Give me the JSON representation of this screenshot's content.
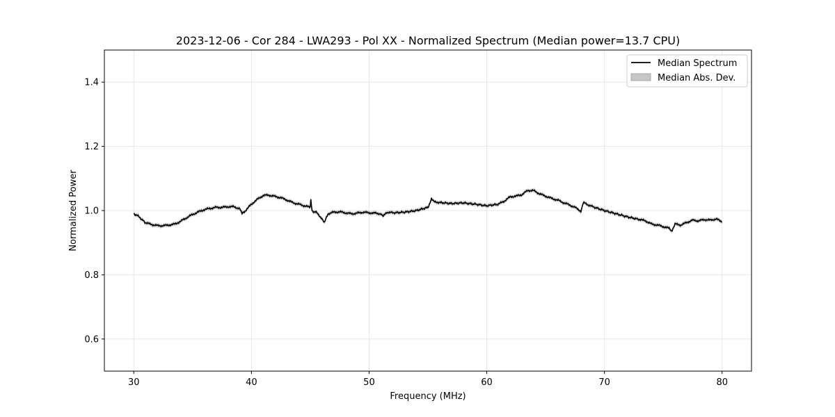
{
  "chart_data": {
    "type": "line",
    "title": "2023-12-06 - Cor 284 - LWA293 - Pol XX - Normalized Spectrum (Median power=13.7 CPU)",
    "xlabel": "Frequency (MHz)",
    "ylabel": "Normalized Power",
    "xlim": [
      27.5,
      82.5
    ],
    "ylim": [
      0.5,
      1.5
    ],
    "xticks": [
      30,
      40,
      50,
      60,
      70,
      80
    ],
    "yticks": [
      0.6,
      0.8,
      1.0,
      1.2,
      1.4
    ],
    "grid": true,
    "legend_position": "top-right",
    "series": [
      {
        "name": "Median Spectrum",
        "kind": "line",
        "color": "#000000",
        "x": [
          30,
          30.3,
          30.6,
          31,
          31.5,
          32,
          32.5,
          33,
          33.5,
          34,
          34.5,
          35,
          35.5,
          36,
          36.5,
          37,
          37.5,
          38,
          38.5,
          39,
          39.2,
          39.5,
          40,
          40.5,
          41,
          41.5,
          42,
          42.5,
          43,
          43.5,
          44,
          44.5,
          45,
          45.05,
          45.15,
          45.5,
          46,
          46.2,
          46.5,
          47,
          47.5,
          48,
          48.5,
          49,
          49.5,
          50,
          50.5,
          51,
          51.2,
          51.5,
          52,
          53,
          54,
          55,
          55.3,
          55.5,
          56,
          57,
          58,
          59,
          60,
          61,
          61.5,
          62,
          62.5,
          63,
          63.5,
          64,
          64.5,
          65,
          65.5,
          66,
          66.5,
          67,
          67.5,
          68,
          68.2,
          68.5,
          69,
          70,
          71,
          72,
          73,
          73.5,
          74,
          74.5,
          75,
          75.5,
          75.7,
          76,
          76.5,
          77,
          77.5,
          78,
          78.5,
          79,
          79.5,
          80
        ],
        "y": [
          0.99,
          0.985,
          0.975,
          0.962,
          0.957,
          0.953,
          0.953,
          0.955,
          0.958,
          0.967,
          0.978,
          0.988,
          0.996,
          1.003,
          1.007,
          1.01,
          1.01,
          1.012,
          1.012,
          1.006,
          0.99,
          1.0,
          1.02,
          1.035,
          1.047,
          1.048,
          1.044,
          1.04,
          1.033,
          1.025,
          1.02,
          1.015,
          1.01,
          1.035,
          0.998,
          0.995,
          0.975,
          0.962,
          0.99,
          0.995,
          0.996,
          0.993,
          0.99,
          0.992,
          0.995,
          0.993,
          0.992,
          0.99,
          0.982,
          0.995,
          0.993,
          0.995,
          1.0,
          1.01,
          1.035,
          1.028,
          1.025,
          1.022,
          1.024,
          1.02,
          1.015,
          1.02,
          1.03,
          1.043,
          1.045,
          1.05,
          1.063,
          1.062,
          1.052,
          1.045,
          1.038,
          1.033,
          1.025,
          1.018,
          1.01,
          0.998,
          1.025,
          1.02,
          1.012,
          1.0,
          0.99,
          0.98,
          0.972,
          0.968,
          0.958,
          0.955,
          0.95,
          0.945,
          0.935,
          0.958,
          0.955,
          0.963,
          0.97,
          0.968,
          0.972,
          0.97,
          0.974,
          0.965
        ]
      },
      {
        "name": "Median Abs. Dev.",
        "kind": "band",
        "color": "#a0a0a0",
        "half_width": 0.006
      }
    ]
  }
}
